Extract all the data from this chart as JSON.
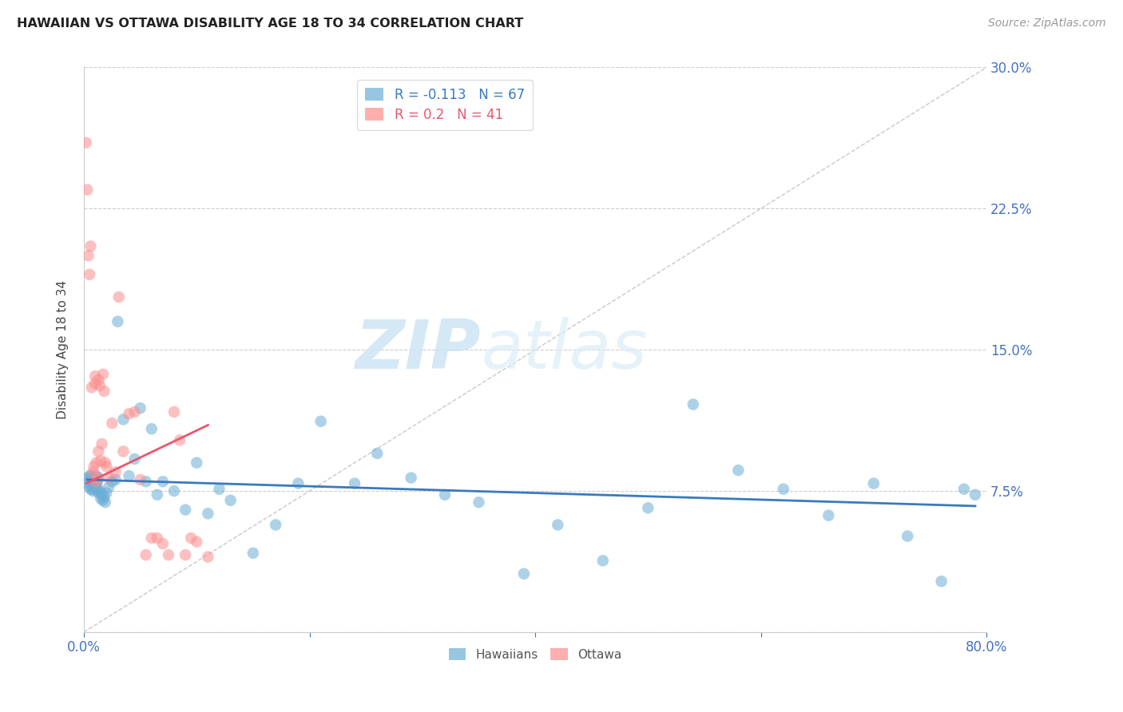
{
  "title": "HAWAIIAN VS OTTAWA DISABILITY AGE 18 TO 34 CORRELATION CHART",
  "source": "Source: ZipAtlas.com",
  "ylabel": "Disability Age 18 to 34",
  "xlim": [
    0.0,
    0.8
  ],
  "ylim": [
    0.0,
    0.3
  ],
  "yticks": [
    0.0,
    0.075,
    0.15,
    0.225,
    0.3
  ],
  "yticklabels": [
    "",
    "7.5%",
    "15.0%",
    "22.5%",
    "30.0%"
  ],
  "hawaiian_R": -0.113,
  "hawaiian_N": 67,
  "ottawa_R": 0.2,
  "ottawa_N": 41,
  "hawaiian_color": "#6baed6",
  "ottawa_color": "#fc8d8d",
  "line_color_hawaiian": "#3a7abf",
  "line_color_ottawa": "#e8566e",
  "diagonal_color": "#c8c8c8",
  "watermark_zip": "ZIP",
  "watermark_atlas": "atlas",
  "background_color": "#ffffff",
  "grid_color": "#cccccc",
  "tick_label_color": "#4472c4",
  "hawaiian_x": [
    0.003,
    0.004,
    0.005,
    0.005,
    0.006,
    0.006,
    0.007,
    0.007,
    0.008,
    0.008,
    0.009,
    0.009,
    0.01,
    0.01,
    0.011,
    0.011,
    0.012,
    0.012,
    0.013,
    0.013,
    0.014,
    0.015,
    0.016,
    0.017,
    0.018,
    0.019,
    0.02,
    0.022,
    0.025,
    0.028,
    0.03,
    0.035,
    0.04,
    0.045,
    0.05,
    0.055,
    0.06,
    0.065,
    0.07,
    0.08,
    0.09,
    0.1,
    0.11,
    0.12,
    0.13,
    0.15,
    0.17,
    0.19,
    0.21,
    0.24,
    0.26,
    0.29,
    0.32,
    0.35,
    0.39,
    0.42,
    0.46,
    0.5,
    0.54,
    0.58,
    0.62,
    0.66,
    0.7,
    0.73,
    0.76,
    0.78,
    0.79
  ],
  "hawaiian_y": [
    0.082,
    0.079,
    0.083,
    0.077,
    0.081,
    0.076,
    0.083,
    0.078,
    0.082,
    0.075,
    0.08,
    0.076,
    0.081,
    0.077,
    0.083,
    0.078,
    0.08,
    0.076,
    0.082,
    0.074,
    0.075,
    0.071,
    0.073,
    0.07,
    0.072,
    0.069,
    0.074,
    0.077,
    0.08,
    0.081,
    0.165,
    0.113,
    0.083,
    0.092,
    0.119,
    0.08,
    0.108,
    0.073,
    0.08,
    0.075,
    0.065,
    0.09,
    0.063,
    0.076,
    0.07,
    0.042,
    0.057,
    0.079,
    0.112,
    0.079,
    0.095,
    0.082,
    0.073,
    0.069,
    0.031,
    0.057,
    0.038,
    0.066,
    0.121,
    0.086,
    0.076,
    0.062,
    0.079,
    0.051,
    0.027,
    0.076,
    0.073
  ],
  "ottawa_x": [
    0.002,
    0.003,
    0.004,
    0.005,
    0.006,
    0.007,
    0.008,
    0.009,
    0.01,
    0.01,
    0.011,
    0.011,
    0.012,
    0.013,
    0.013,
    0.014,
    0.015,
    0.016,
    0.017,
    0.018,
    0.019,
    0.02,
    0.022,
    0.025,
    0.028,
    0.031,
    0.035,
    0.04,
    0.045,
    0.05,
    0.055,
    0.06,
    0.065,
    0.07,
    0.075,
    0.08,
    0.085,
    0.09,
    0.095,
    0.1,
    0.11
  ],
  "ottawa_y": [
    0.26,
    0.235,
    0.2,
    0.19,
    0.205,
    0.13,
    0.085,
    0.088,
    0.136,
    0.132,
    0.09,
    0.08,
    0.082,
    0.096,
    0.134,
    0.131,
    0.091,
    0.1,
    0.137,
    0.128,
    0.09,
    0.088,
    0.082,
    0.111,
    0.085,
    0.178,
    0.096,
    0.116,
    0.117,
    0.081,
    0.041,
    0.05,
    0.05,
    0.047,
    0.041,
    0.117,
    0.102,
    0.041,
    0.05,
    0.048,
    0.04
  ],
  "h_line_x": [
    0.003,
    0.79
  ],
  "h_line_y": [
    0.081,
    0.067
  ],
  "o_line_x": [
    0.002,
    0.11
  ],
  "o_line_y": [
    0.079,
    0.11
  ]
}
